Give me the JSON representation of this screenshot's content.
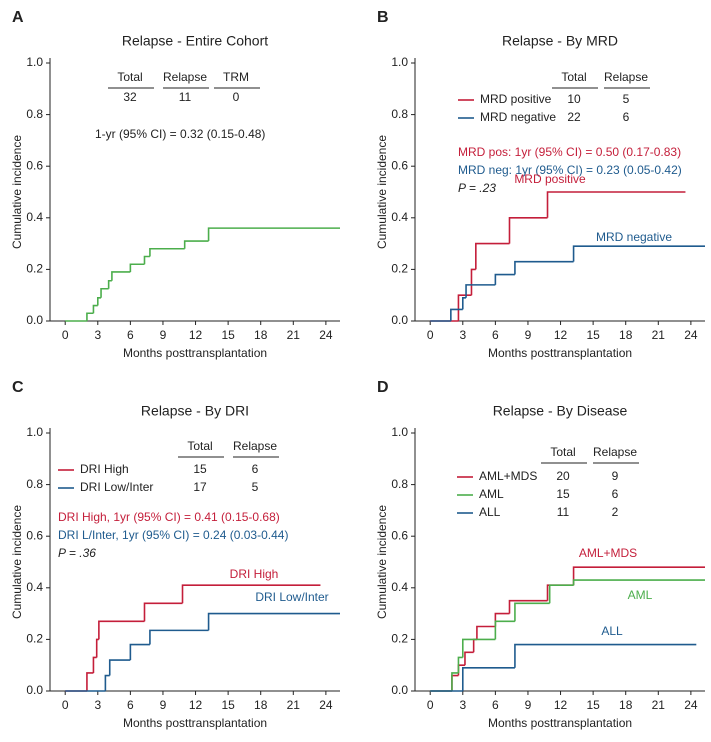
{
  "chart_data": [
    {
      "type": "step",
      "letter": "A",
      "title": "Relapse - Entire Cohort",
      "ylabel": "Cumulative incidence",
      "xlabel": "Months posttransplantation",
      "xlim": [
        -1.4,
        25.3
      ],
      "ylim": [
        0,
        1
      ],
      "xticks": [
        0,
        3,
        6,
        9,
        12,
        15,
        18,
        21,
        24
      ],
      "yticks": [
        {
          "value": 0,
          "label": "0.0"
        },
        0.2,
        0.4,
        0.6,
        0.8,
        {
          "value": 1,
          "label": "1.0"
        }
      ],
      "series": [
        {
          "color": "#4cae4c",
          "x": [
            0,
            2,
            2.6,
            3,
            3.3,
            4,
            4.3,
            6,
            7.3,
            7.8,
            11,
            13.2,
            25.3
          ],
          "values": [
            0,
            0.03,
            0.06,
            0.09,
            0.125,
            0.156,
            0.19,
            0.22,
            0.25,
            0.28,
            0.31,
            0.36,
            0.36
          ]
        }
      ],
      "table": {
        "columns": [
          "Total",
          "Relapse",
          "TRM"
        ],
        "rows": [
          [
            32,
            11,
            0
          ]
        ]
      },
      "annotations": [
        {
          "text": "1-yr (95% CI) = 0.32 (0.15-0.48)",
          "color": "#222222"
        }
      ]
    },
    {
      "type": "step",
      "letter": "B",
      "title": "Relapse - By MRD",
      "ylabel": "Cumulative incidence",
      "xlabel": "Months posttransplantation",
      "xlim": [
        -1.4,
        25.3
      ],
      "ylim": [
        0,
        1
      ],
      "xticks": [
        0,
        3,
        6,
        9,
        12,
        15,
        18,
        21,
        24
      ],
      "yticks": [
        {
          "value": 0,
          "label": "0.0"
        },
        0.2,
        0.4,
        0.6,
        0.8,
        {
          "value": 1,
          "label": "1.0"
        }
      ],
      "series": [
        {
          "name": "MRD positive",
          "color": "#c41e3a",
          "x": [
            0,
            2.6,
            3.8,
            4.2,
            7.3,
            10.8,
            23.5
          ],
          "values": [
            0,
            0.1,
            0.2,
            0.3,
            0.4,
            0.5,
            0.5
          ]
        },
        {
          "name": "MRD negative",
          "color": "#1f5b8e",
          "x": [
            0,
            1.9,
            3,
            3.3,
            6,
            7.8,
            13.2,
            25.3
          ],
          "values": [
            0,
            0.045,
            0.09,
            0.14,
            0.18,
            0.23,
            0.29,
            0.29
          ]
        }
      ],
      "table": {
        "columns": [
          "Total",
          "Relapse"
        ],
        "rows": [
          [
            10,
            5
          ],
          [
            22,
            6
          ]
        ]
      },
      "annotations": [
        {
          "text": "MRD pos: 1yr (95% CI) = 0.50 (0.17-0.83)",
          "color": "#c41e3a"
        },
        {
          "text": "MRD neg: 1yr (95% CI) = 0.23 (0.05-0.42)",
          "color": "#1f5b8e"
        },
        {
          "text": "P = .23",
          "color": "#222222"
        }
      ]
    },
    {
      "type": "step",
      "letter": "C",
      "title": "Relapse - By DRI",
      "ylabel": "Cumulative incidence",
      "xlabel": "Months posttransplantation",
      "xlim": [
        -1.4,
        25.3
      ],
      "ylim": [
        0,
        1
      ],
      "xticks": [
        0,
        3,
        6,
        9,
        12,
        15,
        18,
        21,
        24
      ],
      "yticks": [
        {
          "value": 0,
          "label": "0.0"
        },
        0.2,
        0.4,
        0.6,
        0.8,
        {
          "value": 1,
          "label": "1.0"
        }
      ],
      "series": [
        {
          "name": "DRI High",
          "color": "#c41e3a",
          "x": [
            0,
            2,
            2.6,
            2.9,
            3.1,
            7.3,
            10.8,
            23.5
          ],
          "values": [
            0,
            0.07,
            0.13,
            0.2,
            0.27,
            0.34,
            0.41,
            0.41
          ]
        },
        {
          "name": "DRI Low/Inter",
          "color": "#1f5b8e",
          "x": [
            0,
            3.7,
            4.1,
            6,
            7.8,
            13.2,
            25.3
          ],
          "values": [
            0,
            0.06,
            0.12,
            0.18,
            0.235,
            0.3,
            0.3
          ]
        }
      ],
      "table": {
        "columns": [
          "Total",
          "Relapse"
        ],
        "rows": [
          [
            15,
            6
          ],
          [
            17,
            5
          ]
        ]
      },
      "annotations": [
        {
          "text": "DRI High, 1yr (95% CI) = 0.41 (0.15-0.68)",
          "color": "#c41e3a"
        },
        {
          "text": "DRI L/Inter, 1yr (95% CI) = 0.24 (0.03-0.44)",
          "color": "#1f5b8e"
        },
        {
          "text": "P = .36",
          "color": "#222222"
        }
      ]
    },
    {
      "type": "step",
      "letter": "D",
      "title": "Relapse - By Disease",
      "ylabel": "Cumulative incidence",
      "xlabel": "Months posttransplantation",
      "xlim": [
        -1.4,
        25.3
      ],
      "ylim": [
        0,
        1
      ],
      "xticks": [
        0,
        3,
        6,
        9,
        12,
        15,
        18,
        21,
        24
      ],
      "yticks": [
        {
          "value": 0,
          "label": "0.0"
        },
        0.2,
        0.4,
        0.6,
        0.8,
        {
          "value": 1,
          "label": "1.0"
        }
      ],
      "series": [
        {
          "name": "AML+MDS",
          "color": "#c41e3a",
          "x": [
            0,
            2,
            2.6,
            3.2,
            4,
            4.3,
            6,
            7.3,
            10.8,
            13.2,
            25.3
          ],
          "values": [
            0,
            0.06,
            0.1,
            0.15,
            0.2,
            0.25,
            0.3,
            0.35,
            0.41,
            0.48,
            0.48
          ]
        },
        {
          "name": "AML",
          "color": "#4cae4c",
          "x": [
            0,
            2,
            2.6,
            3,
            6,
            7.8,
            11,
            13.2,
            25.3
          ],
          "values": [
            0,
            0.07,
            0.13,
            0.2,
            0.27,
            0.34,
            0.41,
            0.43,
            0.43
          ]
        },
        {
          "name": "ALL",
          "color": "#1f5b8e",
          "x": [
            0,
            3,
            7.8,
            24.5
          ],
          "values": [
            0,
            0.09,
            0.18,
            0.18
          ]
        }
      ],
      "table": {
        "columns": [
          "Total",
          "Relapse"
        ],
        "rows": [
          [
            20,
            9
          ],
          [
            15,
            6
          ],
          [
            11,
            2
          ]
        ]
      },
      "annotations": []
    }
  ]
}
